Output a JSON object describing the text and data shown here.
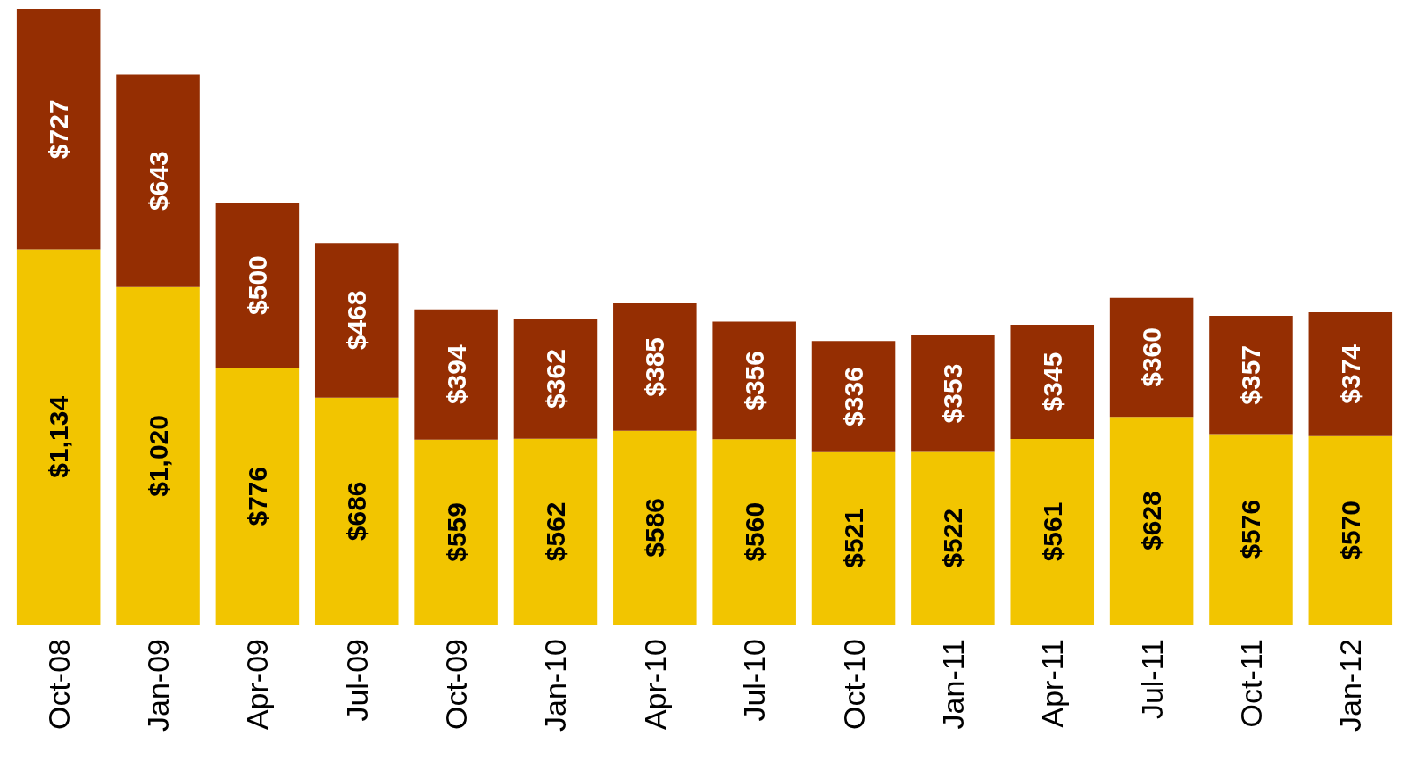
{
  "chart_data": {
    "type": "bar",
    "stacked": true,
    "categories": [
      "Oct-08",
      "Jan-09",
      "Apr-09",
      "Jul-09",
      "Oct-09",
      "Jan-10",
      "Apr-10",
      "Jul-10",
      "Oct-10",
      "Jan-11",
      "Apr-11",
      "Jul-11",
      "Oct-11",
      "Jan-12"
    ],
    "series": [
      {
        "color": "#f2c500",
        "values": [
          1134,
          1020,
          776,
          686,
          559,
          562,
          586,
          560,
          521,
          522,
          561,
          628,
          576,
          570
        ],
        "value_labels": [
          "$1,134",
          "$1,020",
          "$776",
          "$686",
          "$559",
          "$562",
          "$586",
          "$560",
          "$521",
          "$522",
          "$561",
          "$628",
          "$576",
          "$570"
        ]
      },
      {
        "color": "#952e02",
        "values": [
          727,
          643,
          500,
          468,
          394,
          362,
          385,
          356,
          336,
          353,
          345,
          360,
          357,
          374
        ],
        "value_labels": [
          "$727",
          "$643",
          "$500",
          "$468",
          "$394",
          "$362",
          "$385",
          "$356",
          "$336",
          "$353",
          "$345",
          "$360",
          "$357",
          "$374"
        ]
      }
    ],
    "tick_labels": "x"
  }
}
